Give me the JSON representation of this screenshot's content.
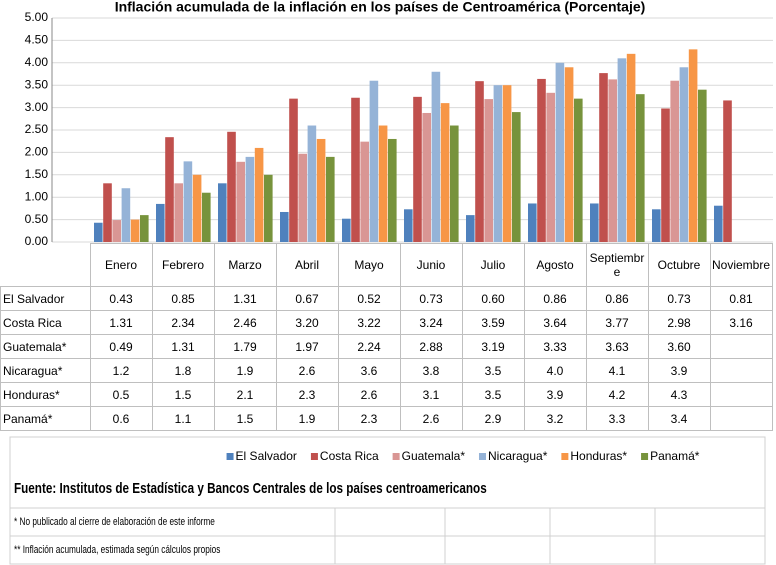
{
  "chart_data": {
    "type": "bar",
    "title": "Inflación acumulada de la inflación en los países de Centroamérica (Porcentaje)",
    "categories": [
      "Enero",
      "Febrero",
      "Marzo",
      "Abril",
      "Mayo",
      "Junio",
      "Julio",
      "Agosto",
      "Septiembre",
      "Octubre",
      "Noviembre"
    ],
    "series": [
      {
        "name": "El Salvador",
        "color": "#4f81bd",
        "values": [
          0.43,
          0.85,
          1.31,
          0.67,
          0.52,
          0.73,
          0.6,
          0.86,
          0.86,
          0.73,
          0.81
        ],
        "value_labels": [
          "0.43",
          "0.85",
          "1.31",
          "0.67",
          "0.52",
          "0.73",
          "0.60",
          "0.86",
          "0.86",
          "0.73",
          "0.81"
        ]
      },
      {
        "name": "Costa Rica",
        "color": "#c0504d",
        "values": [
          1.31,
          2.34,
          2.46,
          3.2,
          3.22,
          3.24,
          3.59,
          3.64,
          3.77,
          2.98,
          3.16
        ],
        "value_labels": [
          "1.31",
          "2.34",
          "2.46",
          "3.20",
          "3.22",
          "3.24",
          "3.59",
          "3.64",
          "3.77",
          "2.98",
          "3.16"
        ]
      },
      {
        "name": "Guatemala*",
        "color": "#d99694",
        "values": [
          0.49,
          1.31,
          1.79,
          1.97,
          2.24,
          2.88,
          3.19,
          3.33,
          3.63,
          3.6,
          null
        ],
        "value_labels": [
          "0.49",
          "1.31",
          "1.79",
          "1.97",
          "2.24",
          "2.88",
          "3.19",
          "3.33",
          "3.63",
          "3.60",
          null
        ]
      },
      {
        "name": "Nicaragua*",
        "color": "#95b3d7",
        "values": [
          1.2,
          1.8,
          1.9,
          2.6,
          3.6,
          3.8,
          3.5,
          4.0,
          4.1,
          3.9,
          null
        ],
        "value_labels": [
          "1.2",
          "1.8",
          "1.9",
          "2.6",
          "3.6",
          "3.8",
          "3.5",
          "4.0",
          "4.1",
          "3.9",
          null
        ]
      },
      {
        "name": "Honduras*",
        "color": "#f79646",
        "values": [
          0.5,
          1.5,
          2.1,
          2.3,
          2.6,
          3.1,
          3.5,
          3.9,
          4.2,
          4.3,
          null
        ],
        "value_labels": [
          "0.5",
          "1.5",
          "2.1",
          "2.3",
          "2.6",
          "3.1",
          "3.5",
          "3.9",
          "4.2",
          "4.3",
          null
        ]
      },
      {
        "name": "Panamá*",
        "color": "#77933c",
        "values": [
          0.6,
          1.1,
          1.5,
          1.9,
          2.3,
          2.6,
          2.9,
          3.2,
          3.3,
          3.4,
          null
        ],
        "value_labels": [
          "0.6",
          "1.1",
          "1.5",
          "1.9",
          "2.3",
          "2.6",
          "2.9",
          "3.2",
          "3.3",
          "3.4",
          null
        ]
      }
    ],
    "ylim": [
      0,
      5
    ],
    "yticks": [
      {
        "value": 0,
        "label": "0.00"
      },
      {
        "value": 0.5,
        "label": "0.50"
      },
      {
        "value": 1,
        "label": "1.00"
      },
      {
        "value": 1.5,
        "label": "1.50"
      },
      {
        "value": 2,
        "label": "2.00"
      },
      {
        "value": 2.5,
        "label": "2.50"
      },
      {
        "value": 3,
        "label": "3.00"
      },
      {
        "value": 3.5,
        "label": "3.50"
      },
      {
        "value": 4,
        "label": "4.00"
      },
      {
        "value": 4.5,
        "label": "4.50"
      },
      {
        "value": 5,
        "label": "5.00"
      }
    ],
    "grid": true,
    "legend": "bottom"
  },
  "source": "Fuente: Institutos de Estadística y Bancos Centrales de los países centroamericanos",
  "notes": [
    "* No publicado al cierre de elaboración de este informe",
    "** Inflación acumulada, estimada según cálculos propios"
  ]
}
